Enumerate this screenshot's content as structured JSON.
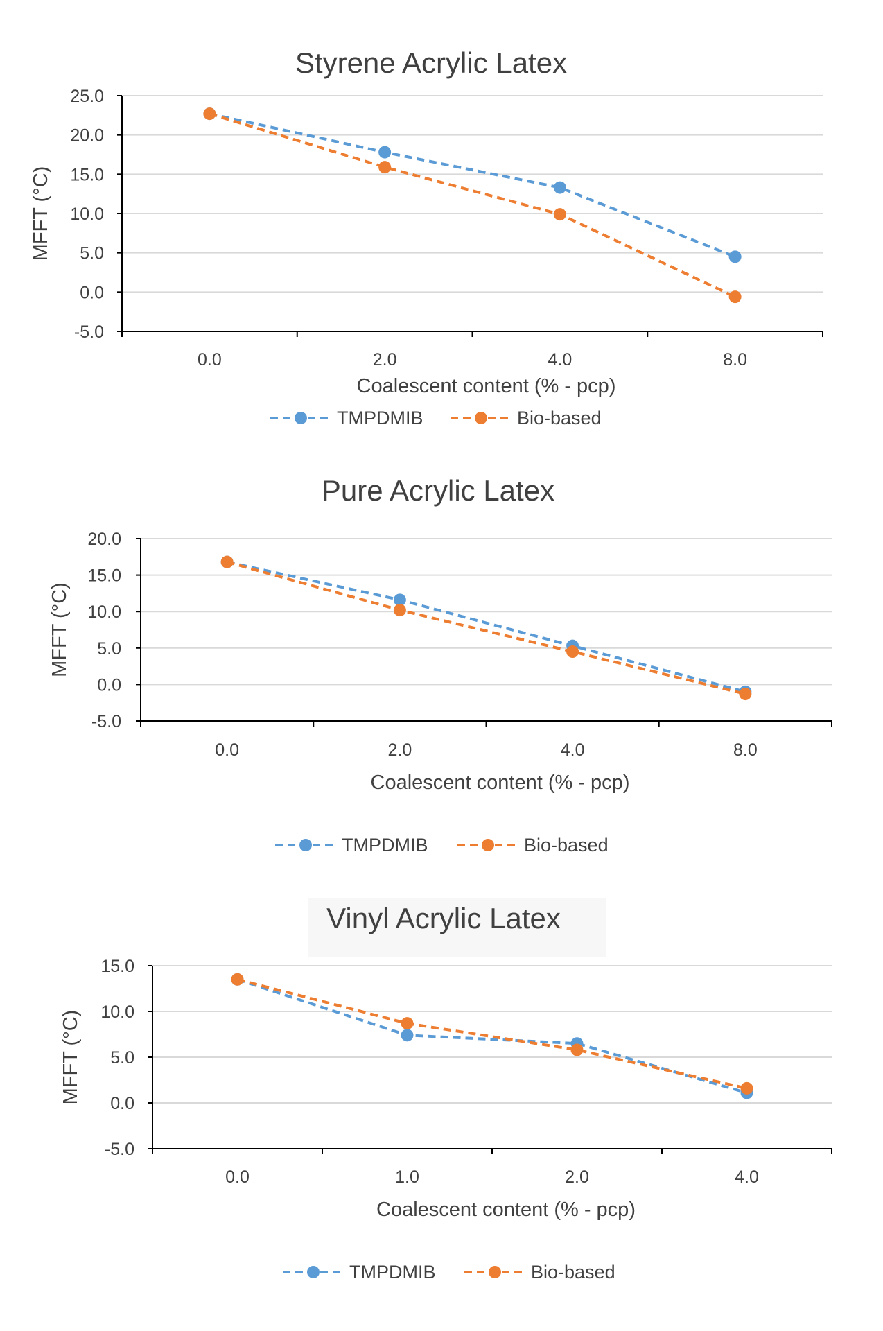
{
  "chart_data": [
    {
      "type": "line",
      "title": "Styrene Acrylic Latex",
      "xlabel": "Coalescent content (% - pcp)",
      "ylabel": "MFFT (°C)",
      "categories": [
        "0.0",
        "2.0",
        "4.0",
        "8.0"
      ],
      "ylim": [
        -5,
        25
      ],
      "ytick_step": 5,
      "ytick_labels": [
        "-5.0",
        "0.0",
        "5.0",
        "10.0",
        "15.0",
        "20.0",
        "25.0"
      ],
      "grid": true,
      "legend": "bottom",
      "series": [
        {
          "name": "TMPDMIB",
          "color": "#5b9bd5",
          "values": [
            22.7,
            17.8,
            13.3,
            4.5
          ]
        },
        {
          "name": "Bio-based",
          "color": "#ed7d31",
          "values": [
            22.7,
            15.9,
            9.9,
            -0.6
          ]
        }
      ]
    },
    {
      "type": "line",
      "title": "Pure Acrylic Latex",
      "xlabel": "Coalescent content (% - pcp)",
      "ylabel": "MFFT (°C)",
      "categories": [
        "0.0",
        "2.0",
        "4.0",
        "8.0"
      ],
      "ylim": [
        -5,
        20
      ],
      "ytick_step": 5,
      "ytick_labels": [
        "-5.0",
        "0.0",
        "5.0",
        "10.0",
        "15.0",
        "20.0"
      ],
      "grid": true,
      "legend": "bottom",
      "series": [
        {
          "name": "TMPDMIB",
          "color": "#5b9bd5",
          "values": [
            16.8,
            11.6,
            5.3,
            -1.0
          ]
        },
        {
          "name": "Bio-based",
          "color": "#ed7d31",
          "values": [
            16.8,
            10.2,
            4.5,
            -1.3
          ]
        }
      ]
    },
    {
      "type": "line",
      "title": "Vinyl Acrylic Latex",
      "xlabel": "Coalescent content (% - pcp)",
      "ylabel": "MFFT (°C)",
      "categories": [
        "0.0",
        "1.0",
        "2.0",
        "4.0"
      ],
      "ylim": [
        -5,
        15
      ],
      "ytick_step": 5,
      "ytick_labels": [
        "-5.0",
        "0.0",
        "5.0",
        "10.0",
        "15.0"
      ],
      "grid": true,
      "legend": "bottom",
      "series": [
        {
          "name": "TMPDMIB",
          "color": "#5b9bd5",
          "values": [
            13.5,
            7.4,
            6.5,
            1.1
          ]
        },
        {
          "name": "Bio-based",
          "color": "#ed7d31",
          "values": [
            13.5,
            8.7,
            5.8,
            1.6
          ]
        }
      ]
    }
  ]
}
